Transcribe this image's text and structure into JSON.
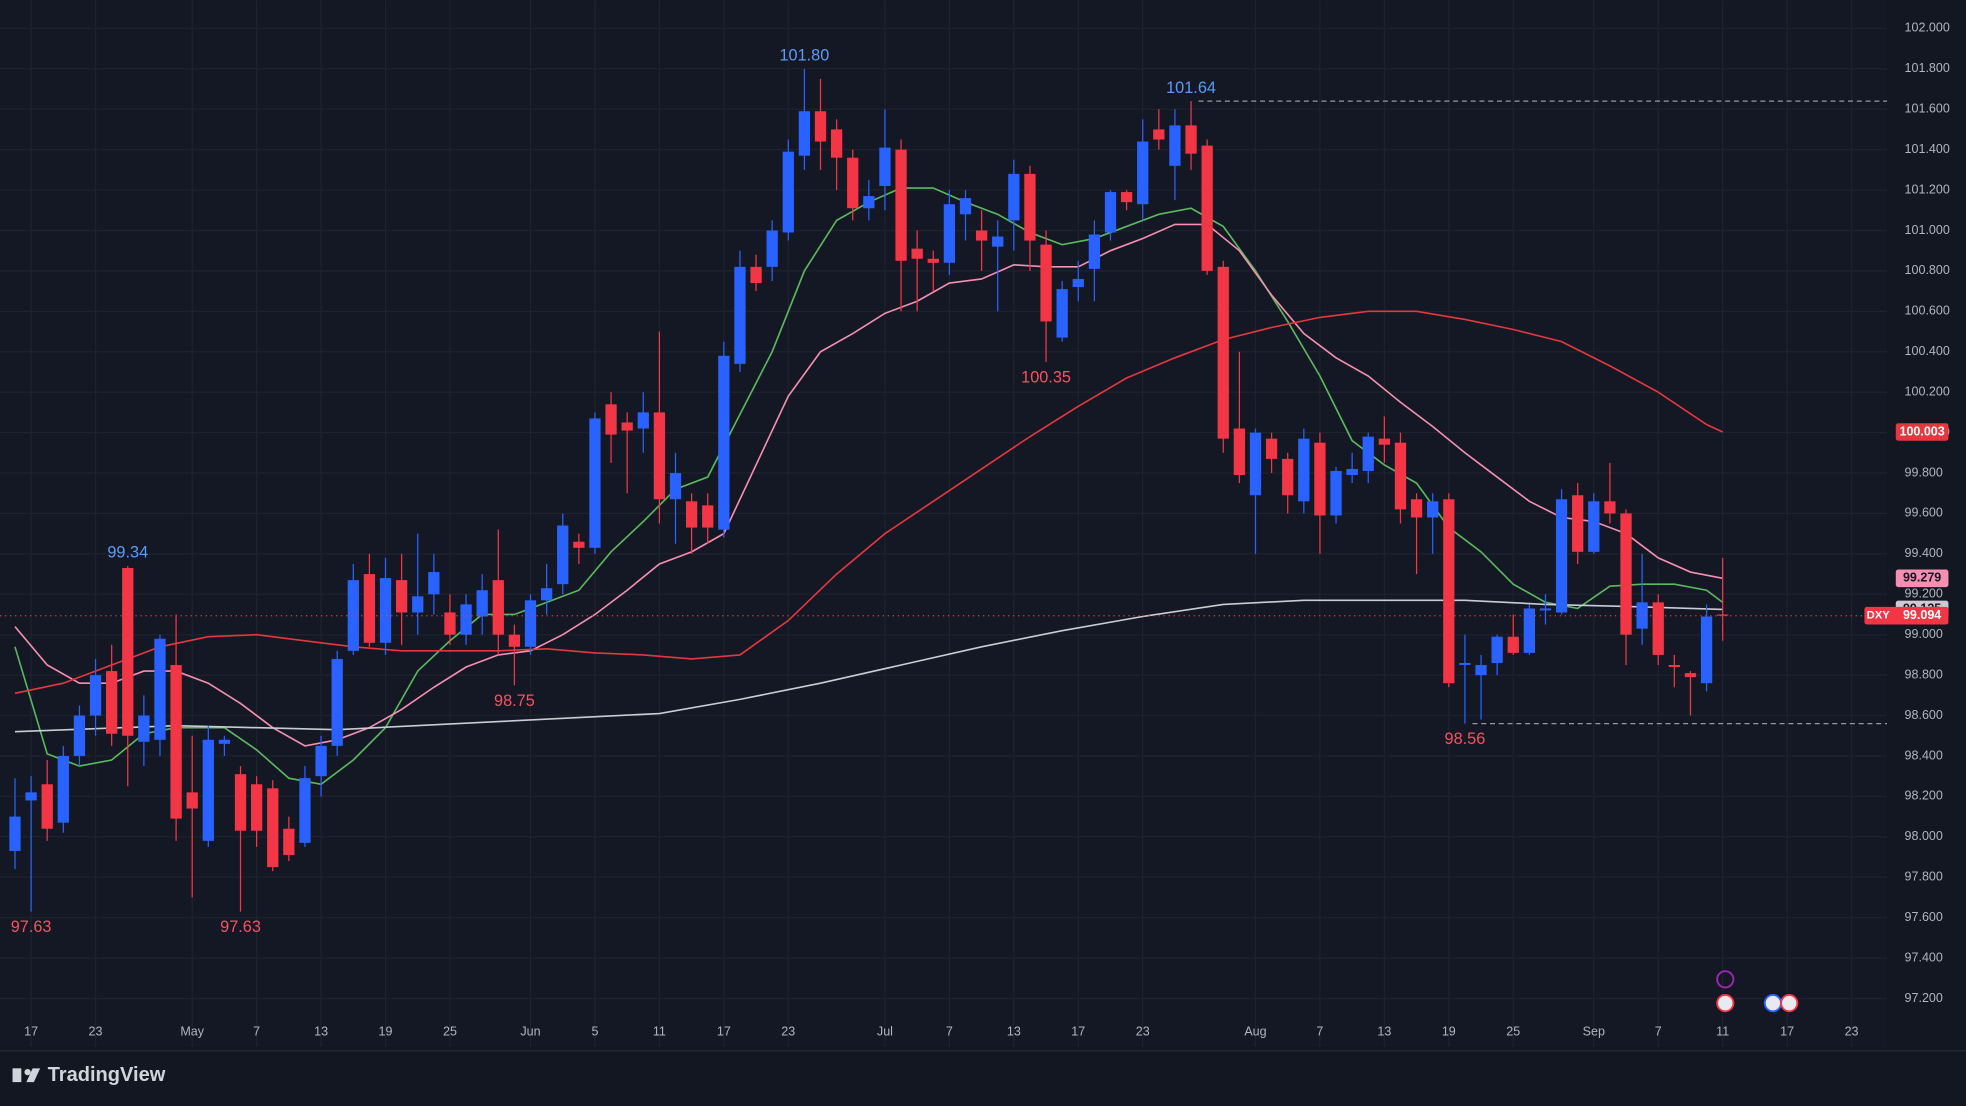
{
  "chart_data": {
    "type": "candlestick",
    "symbol": "DXY",
    "up_color": "#2962ff",
    "down_color": "#f23645",
    "grid": true,
    "price_line": true,
    "open": [
      97.93,
      98.18,
      98.26,
      98.07,
      98.4,
      98.6,
      98.82,
      99.33,
      98.47,
      98.48,
      98.85,
      98.22,
      97.98,
      98.46,
      98.31,
      98.26,
      98.24,
      98.04,
      97.97,
      98.3,
      98.45,
      98.92,
      99.3,
      98.96,
      99.27,
      99.11,
      99.2,
      99.11,
      99.0,
      99.09,
      99.27,
      99.0,
      98.94,
      99.17,
      99.25,
      99.46,
      99.43,
      100.14,
      100.05,
      100.02,
      100.1,
      99.67,
      99.66,
      99.64,
      99.52,
      100.34,
      100.82,
      100.82,
      100.99,
      101.37,
      101.59,
      101.5,
      101.36,
      101.11,
      101.22,
      101.4,
      100.91,
      100.86,
      100.84,
      101.08,
      101.0,
      100.92,
      101.05,
      101.28,
      100.93,
      100.47,
      100.72,
      100.81,
      100.99,
      101.19,
      101.13,
      101.5,
      101.32,
      101.52,
      101.42,
      100.82,
      100.02,
      99.69,
      99.97,
      99.87,
      99.66,
      99.95,
      99.59,
      99.79,
      99.81,
      99.97,
      99.95,
      99.67,
      99.58,
      99.67,
      98.85,
      98.8,
      98.86,
      98.99,
      98.91,
      99.12,
      99.11,
      99.69,
      99.41,
      99.66,
      99.6,
      99.03,
      99.16,
      98.85,
      98.81,
      98.76,
      99.1
    ],
    "high": [
      98.29,
      98.3,
      98.38,
      98.45,
      98.65,
      98.88,
      98.95,
      99.34,
      98.7,
      99.0,
      99.1,
      98.5,
      98.55,
      98.5,
      98.35,
      98.3,
      98.28,
      98.1,
      98.35,
      98.5,
      98.92,
      99.35,
      99.4,
      99.38,
      99.4,
      99.5,
      99.4,
      99.2,
      99.2,
      99.3,
      99.52,
      99.05,
      99.2,
      99.35,
      99.6,
      99.5,
      100.1,
      100.2,
      100.1,
      100.2,
      100.5,
      99.9,
      99.7,
      99.7,
      100.45,
      100.9,
      100.88,
      101.05,
      101.45,
      101.8,
      101.75,
      101.55,
      101.4,
      101.25,
      101.6,
      101.45,
      101.0,
      100.9,
      101.2,
      101.2,
      101.1,
      101.05,
      101.35,
      101.32,
      101.0,
      100.75,
      100.85,
      101.05,
      101.2,
      101.2,
      101.55,
      101.6,
      101.6,
      101.64,
      101.45,
      100.85,
      100.4,
      100.02,
      100.0,
      99.9,
      100.02,
      100.0,
      99.83,
      99.9,
      100.0,
      100.08,
      100.0,
      99.7,
      99.7,
      99.7,
      99.0,
      98.9,
      99.0,
      99.1,
      99.15,
      99.2,
      99.72,
      99.75,
      99.7,
      99.85,
      99.62,
      99.4,
      99.2,
      98.9,
      98.82,
      99.15,
      99.38
    ],
    "low": [
      97.84,
      97.63,
      97.98,
      98.02,
      98.35,
      98.5,
      98.45,
      98.25,
      98.35,
      98.4,
      97.98,
      97.7,
      97.95,
      98.4,
      97.63,
      97.95,
      97.83,
      97.88,
      97.95,
      98.2,
      98.4,
      98.9,
      98.94,
      98.9,
      98.95,
      99.0,
      99.1,
      98.95,
      98.95,
      99.0,
      98.9,
      98.75,
      98.9,
      99.1,
      99.2,
      99.35,
      99.4,
      99.85,
      99.7,
      99.9,
      99.55,
      99.45,
      99.4,
      99.45,
      99.48,
      100.3,
      100.7,
      100.75,
      100.95,
      101.3,
      101.3,
      101.2,
      101.05,
      101.05,
      101.1,
      100.6,
      100.6,
      100.7,
      100.78,
      100.95,
      100.8,
      100.6,
      100.9,
      100.8,
      100.35,
      100.45,
      100.65,
      100.65,
      100.95,
      101.1,
      101.05,
      101.4,
      101.15,
      101.3,
      100.78,
      99.9,
      99.75,
      99.4,
      99.8,
      99.6,
      99.6,
      99.4,
      99.55,
      99.75,
      99.75,
      99.85,
      99.55,
      99.3,
      99.4,
      98.74,
      98.56,
      98.58,
      98.8,
      98.9,
      98.9,
      99.05,
      99.1,
      99.35,
      99.4,
      99.55,
      98.85,
      98.95,
      98.85,
      98.74,
      98.6,
      98.72,
      98.97
    ],
    "close": [
      98.1,
      98.22,
      98.04,
      98.4,
      98.6,
      98.8,
      98.51,
      98.5,
      98.6,
      98.98,
      98.09,
      98.14,
      98.48,
      98.48,
      98.03,
      98.03,
      97.85,
      97.91,
      98.29,
      98.45,
      98.88,
      99.27,
      98.96,
      99.28,
      99.11,
      99.19,
      99.31,
      99.0,
      99.15,
      99.22,
      99.0,
      98.94,
      99.17,
      99.23,
      99.54,
      99.43,
      100.07,
      99.99,
      100.01,
      100.1,
      99.67,
      99.8,
      99.53,
      99.53,
      100.38,
      100.82,
      100.74,
      101.0,
      101.39,
      101.59,
      101.44,
      101.36,
      101.11,
      101.17,
      101.41,
      100.85,
      100.86,
      100.84,
      101.13,
      101.16,
      100.95,
      100.97,
      101.28,
      100.95,
      100.55,
      100.71,
      100.76,
      100.98,
      101.19,
      101.14,
      101.44,
      101.45,
      101.52,
      101.38,
      100.8,
      99.97,
      99.79,
      100.0,
      99.87,
      99.69,
      99.97,
      99.59,
      99.81,
      99.82,
      99.98,
      99.94,
      99.62,
      99.58,
      99.66,
      98.76,
      98.86,
      98.85,
      98.99,
      98.91,
      99.13,
      99.13,
      99.67,
      99.41,
      99.66,
      99.6,
      99.0,
      99.16,
      98.9,
      98.84,
      98.79,
      99.09,
      99.094
    ],
    "series": [
      {
        "color": "#5cb85f",
        "x": [
          0,
          2,
          4,
          6,
          8,
          10,
          13,
          15,
          17,
          19,
          21,
          23,
          25,
          27,
          29,
          31,
          33,
          35,
          37,
          39,
          41,
          43,
          45,
          47,
          49,
          51,
          53,
          55,
          57,
          59,
          61,
          63,
          65,
          67,
          69,
          71,
          73,
          75,
          77,
          79,
          81,
          83,
          85,
          87,
          89,
          91,
          93,
          95,
          97,
          99,
          101,
          103,
          105,
          106
        ],
        "values": [
          98.94,
          98.41,
          98.35,
          98.38,
          98.51,
          98.54,
          98.54,
          98.43,
          98.29,
          98.26,
          98.38,
          98.54,
          98.82,
          98.97,
          99.1,
          99.1,
          99.16,
          99.22,
          99.41,
          99.56,
          99.72,
          99.78,
          100.09,
          100.4,
          100.8,
          101.05,
          101.14,
          101.21,
          101.21,
          101.14,
          101.08,
          100.99,
          100.93,
          100.96,
          101.02,
          101.08,
          101.11,
          101.02,
          100.8,
          100.55,
          100.28,
          99.96,
          99.84,
          99.75,
          99.53,
          99.41,
          99.25,
          99.16,
          99.13,
          99.24,
          99.25,
          99.25,
          99.22,
          99.16
        ]
      },
      {
        "color": "#f48fb1",
        "tag": true,
        "x": [
          0,
          2,
          4,
          6,
          8,
          10,
          12,
          14,
          16,
          18,
          20,
          22,
          24,
          26,
          28,
          30,
          32,
          34,
          36,
          38,
          40,
          42,
          44,
          46,
          48,
          50,
          52,
          54,
          56,
          58,
          60,
          62,
          64,
          66,
          68,
          70,
          72,
          74,
          76,
          78,
          80,
          82,
          84,
          86,
          88,
          90,
          92,
          94,
          96,
          98,
          100,
          102,
          104,
          106
        ],
        "values": [
          99.04,
          98.85,
          98.76,
          98.76,
          98.82,
          98.82,
          98.76,
          98.66,
          98.54,
          98.45,
          98.48,
          98.54,
          98.63,
          98.74,
          98.84,
          98.9,
          98.92,
          99.0,
          99.1,
          99.22,
          99.35,
          99.41,
          99.5,
          99.84,
          100.18,
          100.4,
          100.49,
          100.59,
          100.65,
          100.74,
          100.76,
          100.83,
          100.82,
          100.82,
          100.9,
          100.96,
          101.03,
          101.03,
          100.9,
          100.68,
          100.49,
          100.37,
          100.28,
          100.15,
          100.03,
          99.9,
          99.78,
          99.66,
          99.58,
          99.56,
          99.5,
          99.38,
          99.31,
          99.279
        ]
      },
      {
        "color": "#e5373f",
        "tag": true,
        "x": [
          0,
          3,
          6,
          9,
          12,
          15,
          18,
          21,
          24,
          27,
          30,
          33,
          36,
          39,
          42,
          45,
          48,
          51,
          54,
          57,
          60,
          63,
          66,
          69,
          72,
          75,
          78,
          81,
          84,
          87,
          90,
          93,
          96,
          99,
          102,
          105,
          106
        ],
        "values": [
          98.71,
          98.76,
          98.85,
          98.94,
          98.99,
          99.0,
          98.97,
          98.94,
          98.92,
          98.92,
          98.92,
          98.93,
          98.91,
          98.9,
          98.88,
          98.9,
          99.07,
          99.3,
          99.5,
          99.66,
          99.82,
          99.98,
          100.13,
          100.27,
          100.37,
          100.46,
          100.52,
          100.57,
          100.6,
          100.6,
          100.56,
          100.51,
          100.45,
          100.33,
          100.2,
          100.04,
          100.003
        ]
      },
      {
        "color": "#c9ccd4",
        "tag": true,
        "x": [
          0,
          10,
          20,
          30,
          40,
          45,
          50,
          55,
          60,
          65,
          70,
          75,
          80,
          85,
          90,
          95,
          100,
          106
        ],
        "values": [
          98.52,
          98.55,
          98.53,
          98.57,
          98.61,
          98.68,
          98.76,
          98.85,
          98.94,
          99.02,
          99.09,
          99.15,
          99.17,
          99.17,
          99.17,
          99.15,
          99.14,
          99.125
        ]
      }
    ],
    "annotations": [
      {
        "label": "101.80",
        "value": 101.8
      },
      {
        "label": "101.64",
        "value": 101.64,
        "dashed": true
      },
      {
        "label": "100.35",
        "value": 100.35
      },
      {
        "label": "99.34",
        "value": 99.34
      },
      {
        "label": "98.75",
        "value": 98.75
      },
      {
        "label": "98.56",
        "value": 98.56,
        "dashed": true
      },
      {
        "label": "97.63",
        "value": 97.63
      },
      {
        "label": "97.63",
        "value": 97.63
      }
    ],
    "xlim": [
      -0.93,
      116.2
    ],
    "ylim": [
      96.96,
      102.14
    ],
    "xticks": [
      {
        "value": 1,
        "label": "17"
      },
      {
        "value": 5,
        "label": "23"
      },
      {
        "value": 11,
        "label": "May"
      },
      {
        "value": 15,
        "label": "7"
      },
      {
        "value": 19,
        "label": "13"
      },
      {
        "value": 23,
        "label": "19"
      },
      {
        "value": 27,
        "label": "25"
      },
      {
        "value": 32,
        "label": "Jun"
      },
      {
        "value": 36,
        "label": "5"
      },
      {
        "value": 40,
        "label": "11"
      },
      {
        "value": 44,
        "label": "17"
      },
      {
        "value": 48,
        "label": "23"
      },
      {
        "value": 54,
        "label": "Jul"
      },
      {
        "value": 58,
        "label": "7"
      },
      {
        "value": 62,
        "label": "13"
      },
      {
        "value": 66,
        "label": "17"
      },
      {
        "value": 70,
        "label": "23"
      },
      {
        "value": 77,
        "label": "Aug"
      },
      {
        "value": 81,
        "label": "7"
      },
      {
        "value": 85,
        "label": "13"
      },
      {
        "value": 89,
        "label": "19"
      },
      {
        "value": 93,
        "label": "25"
      },
      {
        "value": 98,
        "label": "Sep"
      },
      {
        "value": 102,
        "label": "7"
      },
      {
        "value": 106,
        "label": "11"
      },
      {
        "value": 110,
        "label": "17"
      },
      {
        "value": 114,
        "label": "23"
      }
    ],
    "yticks": [
      {
        "value": 97.2,
        "label": "97.200"
      },
      {
        "value": 97.4,
        "label": "97.400"
      },
      {
        "value": 97.6,
        "label": "97.600"
      },
      {
        "value": 97.8,
        "label": "97.800"
      },
      {
        "value": 98,
        "label": "98.000"
      },
      {
        "value": 98.2,
        "label": "98.200"
      },
      {
        "value": 98.4,
        "label": "98.400"
      },
      {
        "value": 98.6,
        "label": "98.600"
      },
      {
        "value": 98.8,
        "label": "98.800"
      },
      {
        "value": 99,
        "label": "99.000"
      },
      {
        "value": 99.2,
        "label": "99.200"
      },
      {
        "value": 99.4,
        "label": "99.400"
      },
      {
        "value": 99.6,
        "label": "99.600"
      },
      {
        "value": 99.8,
        "label": "99.800"
      },
      {
        "value": 100,
        "label": "100.000"
      },
      {
        "value": 100.2,
        "label": "100.200"
      },
      {
        "value": 100.4,
        "label": "100.400"
      },
      {
        "value": 100.6,
        "label": "100.600"
      },
      {
        "value": 100.8,
        "label": "100.800"
      },
      {
        "value": 101,
        "label": "101.000"
      },
      {
        "value": 101.2,
        "label": "101.200"
      },
      {
        "value": 101.4,
        "label": "101.400"
      },
      {
        "value": 101.6,
        "label": "101.600"
      },
      {
        "value": 101.8,
        "label": "101.800"
      },
      {
        "value": 102,
        "label": "102.000"
      }
    ]
  },
  "footer": {
    "brand": "TradingView"
  }
}
